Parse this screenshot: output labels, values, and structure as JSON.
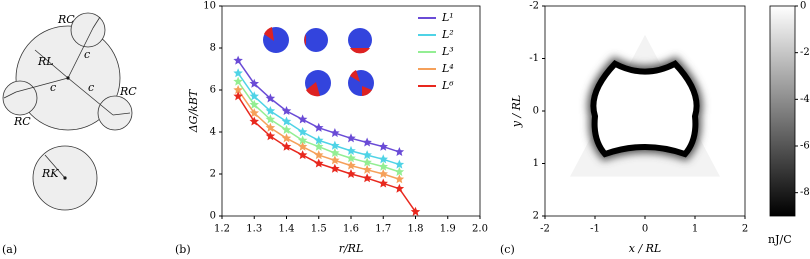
{
  "panel_a": {
    "label": "(a)",
    "texts": [
      "RC",
      "RC",
      "RC",
      "RL",
      "c",
      "c",
      "c",
      "RK"
    ]
  },
  "chart_data": [
    {
      "type": "line",
      "label": "(b)",
      "xlabel": "r/RL",
      "ylabel": "ΔG/kBT",
      "xlim": [
        1.2,
        2.0
      ],
      "xticks": [
        1.2,
        1.3,
        1.4,
        1.5,
        1.6,
        1.7,
        1.8,
        1.9,
        {
          "value": 2.0,
          "label": "2.0"
        }
      ],
      "ylim": [
        0,
        10
      ],
      "yticks": [
        0,
        2,
        4,
        6,
        8,
        10
      ],
      "legend": "upper right",
      "marker": "star",
      "x": [
        1.25,
        1.3,
        1.35,
        1.4,
        1.45,
        1.5,
        1.55,
        1.6,
        1.65,
        1.7,
        1.75,
        1.8
      ],
      "series": [
        {
          "name": "L¹",
          "color": "#6a4bd6",
          "values": [
            7.4,
            6.3,
            5.6,
            5.0,
            4.6,
            4.2,
            3.95,
            3.7,
            3.5,
            3.3,
            3.05,
            null
          ]
        },
        {
          "name": "L²",
          "color": "#4fd3e6",
          "values": [
            6.8,
            5.7,
            5.0,
            4.5,
            4.0,
            3.6,
            3.35,
            3.1,
            2.9,
            2.7,
            2.45,
            null
          ]
        },
        {
          "name": "L³",
          "color": "#93ee93",
          "values": [
            6.4,
            5.3,
            4.6,
            4.1,
            3.6,
            3.3,
            3.0,
            2.75,
            2.55,
            2.35,
            2.1,
            null
          ]
        },
        {
          "name": "L⁴",
          "color": "#f5a05a",
          "values": [
            6.0,
            4.9,
            4.2,
            3.7,
            3.3,
            2.9,
            2.65,
            2.4,
            2.2,
            2.0,
            1.75,
            null
          ]
        },
        {
          "name": "L⁶",
          "color": "#e8281e",
          "values": [
            5.7,
            4.5,
            3.8,
            3.3,
            2.9,
            2.5,
            2.25,
            2.0,
            1.8,
            1.55,
            1.3,
            0.2
          ]
        }
      ]
    },
    {
      "type": "heatmap",
      "label": "(c)",
      "xlabel": "x / RL",
      "ylabel": "y / RL",
      "xlim": [
        -2,
        2
      ],
      "xticks": [
        -2,
        -1,
        0,
        1,
        2
      ],
      "ylim": [
        2,
        -2
      ],
      "yticks": [
        -2,
        -1,
        0,
        1,
        2
      ],
      "clim": [
        -9,
        0
      ],
      "cticks": [
        0,
        -2,
        -4,
        -6,
        -8
      ],
      "clabel": "nJ/C",
      "colors": [
        "#000000",
        "#ffffff"
      ]
    }
  ]
}
